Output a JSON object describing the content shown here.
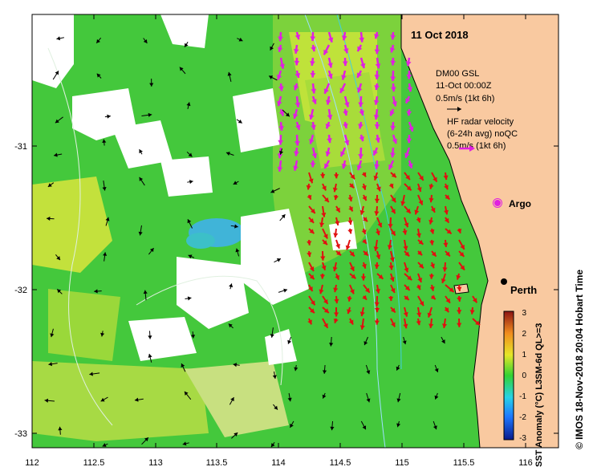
{
  "map": {
    "date_label": "11 Oct 2018",
    "gsl_label": [
      "DM00 GSL",
      "11-Oct 00:00Z",
      "0.5m/s (1kt 6h)"
    ],
    "radar_label": [
      "HF radar velocity",
      "(6-24h avg) noQC",
      "0.5m/s (1kt 6h)"
    ],
    "argo_label": "Argo",
    "city_label": "Perth",
    "credit": "© IMOS 18-Nov-2018 20:04 Hobart Time",
    "colorbar_title": "SST Anomaly (°C) L3SM-6d QL>=3",
    "colorbar_ticks": [
      "3",
      "2",
      "1",
      "0",
      "-1",
      "-2",
      "-3"
    ],
    "x_ticks": [
      "112",
      "112.5",
      "113",
      "113.5",
      "114",
      "114.5",
      "115",
      "115.5",
      "116"
    ],
    "y_ticks": [
      "-31",
      "-32",
      "-33"
    ],
    "colors": {
      "land": "#f9c9a0",
      "radar_arrows": "#e01010",
      "gsl_arrows": "#e020e0",
      "ocean_green": "#3cc832",
      "ocean_yellow": "#c8e632"
    }
  }
}
